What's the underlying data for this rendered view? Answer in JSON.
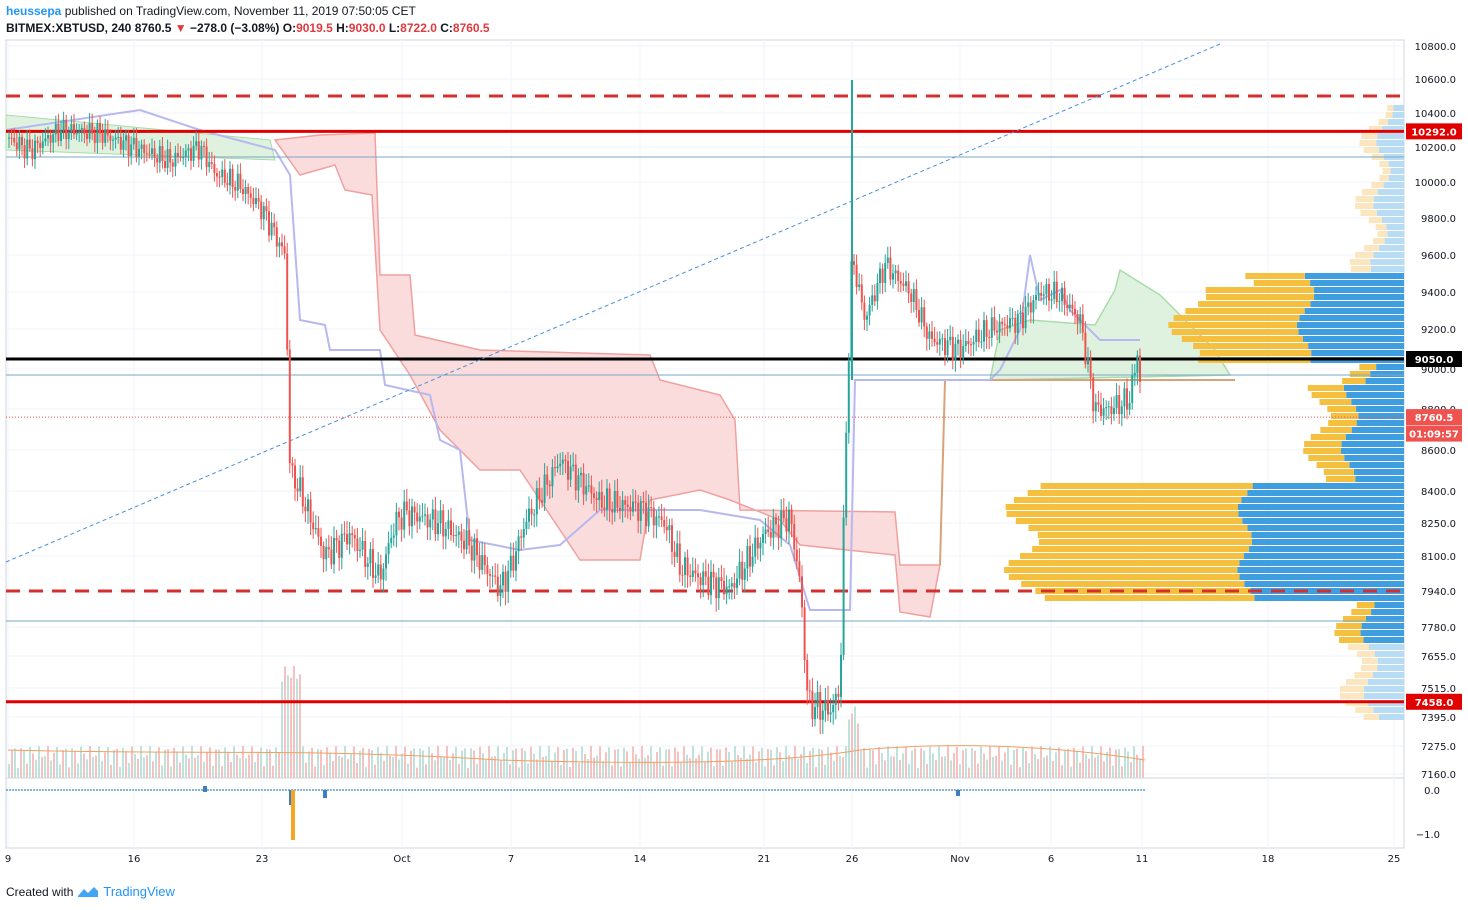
{
  "header": {
    "user": "heussepa",
    "published": "published on TradingView.com, November 11, 2019 07:50:05 CET",
    "symbol": "BITMEX:XBTUSD, 240",
    "last": "8760.5",
    "change": "−278.0 (−3.08%)",
    "open_label": "O:",
    "open": "9019.5",
    "high_label": "H:",
    "high": "9030.0",
    "low_label": "L:",
    "low": "8722.0",
    "close_label": "C:",
    "close": "8760.5"
  },
  "footer": {
    "created_with": "Created with",
    "brand": "TradingView"
  },
  "colors": {
    "up": "#26a69a",
    "down": "#ef5350",
    "red_line": "#e00000",
    "black_line": "#000000",
    "cloud_bull": "#dff2df",
    "cloud_bear": "#fadcdc",
    "vp_up": "#3e9ee0",
    "vp_down": "#f5c040",
    "trend": "#4a90d9"
  },
  "chart_data": {
    "type": "candlestick",
    "symbol": "BITMEX:XBTUSD",
    "interval": "240",
    "y_ticks": [
      "10800.0",
      "10600.0",
      "10400.0",
      "10200.0",
      "10000.0",
      "9800.0",
      "9600.0",
      "9400.0",
      "9200.0",
      "9000.0",
      "8800.0",
      "8600.0",
      "8400.0",
      "8250.0",
      "8100.0",
      "7940.0",
      "7780.0",
      "7655.0",
      "7515.0",
      "7395.0",
      "7275.0",
      "7160.0"
    ],
    "x_ticks": [
      "9",
      "16",
      "23",
      "Oct",
      "7",
      "14",
      "21",
      "26",
      "Nov",
      "6",
      "11",
      "18",
      "25"
    ],
    "osc_ticks": [
      "0.0",
      "−1.0"
    ],
    "price_tags": [
      {
        "label": "10292.0",
        "price": 10292,
        "color": "#e00000"
      },
      {
        "label": "9050.0",
        "price": 9050,
        "color": "#000000"
      },
      {
        "label": "8760.5",
        "price": 8760.5,
        "color": "#ef5350"
      },
      {
        "label": "01:09:57",
        "price": 8680,
        "color": "#ef5350"
      },
      {
        "label": "7458.0",
        "price": 7458,
        "color": "#e00000"
      }
    ],
    "horizontal_lines": [
      {
        "price": 10500,
        "style": "dashed",
        "color": "#d32f2f"
      },
      {
        "price": 10292,
        "style": "solid",
        "color": "#e00000"
      },
      {
        "price": 9050,
        "style": "solid",
        "color": "#000000"
      },
      {
        "price": 7940,
        "style": "dashed",
        "color": "#d32f2f"
      },
      {
        "price": 7458,
        "style": "solid",
        "color": "#e00000"
      }
    ],
    "path_close": [
      [
        "Sep 9",
        10250
      ],
      [
        "Sep 11",
        10150
      ],
      [
        "Sep 13",
        10350
      ],
      [
        "Sep 15",
        10300
      ],
      [
        "Sep 17",
        10180
      ],
      [
        "Sep 19",
        10150
      ],
      [
        "Sep 20",
        10200
      ],
      [
        "Sep 21",
        10050
      ],
      [
        "Sep 22",
        9980
      ],
      [
        "Sep 23",
        9850
      ],
      [
        "Sep 24",
        9600
      ],
      [
        "Sep 24b",
        8500
      ],
      [
        "Sep 25",
        8400
      ],
      [
        "Sep 27",
        8100
      ],
      [
        "Sep 29",
        8000
      ],
      [
        "Sep 30",
        8300
      ],
      [
        "Oct 2",
        8350
      ],
      [
        "Oct 4",
        8150
      ],
      [
        "Oct 6",
        7950
      ],
      [
        "Oct 7",
        8050
      ],
      [
        "Oct 8",
        8200
      ],
      [
        "Oct 10",
        8550
      ],
      [
        "Oct 11",
        8450
      ],
      [
        "Oct 12",
        8350
      ],
      [
        "Oct 14",
        8320
      ],
      [
        "Oct 16",
        8300
      ],
      [
        "Oct 17",
        8050
      ],
      [
        "Oct 18",
        8000
      ],
      [
        "Oct 20",
        7950
      ],
      [
        "Oct 21",
        8150
      ],
      [
        "Oct 22",
        8280
      ],
      [
        "Oct 23",
        7980
      ],
      [
        "Oct 23b",
        7450
      ],
      [
        "Oct 24",
        7420
      ],
      [
        "Oct 25",
        7480
      ],
      [
        "Oct 25b",
        8500
      ],
      [
        "Oct 26",
        9200
      ],
      [
        "Oct 27",
        9300
      ],
      [
        "Oct 28",
        9450
      ],
      [
        "Oct 29",
        9350
      ],
      [
        "Oct 30",
        9150
      ],
      [
        "Oct 31",
        9100
      ],
      [
        "Nov 2",
        9200
      ],
      [
        "Nov 3",
        9250
      ],
      [
        "Nov 4",
        9300
      ],
      [
        "Nov 5",
        9400
      ],
      [
        "Nov 6",
        9380
      ],
      [
        "Nov 7",
        9250
      ],
      [
        "Nov 8",
        8800
      ],
      [
        "Nov 9",
        8820
      ],
      [
        "Nov 10",
        8900
      ],
      [
        "Nov 11",
        8760.5
      ]
    ]
  }
}
